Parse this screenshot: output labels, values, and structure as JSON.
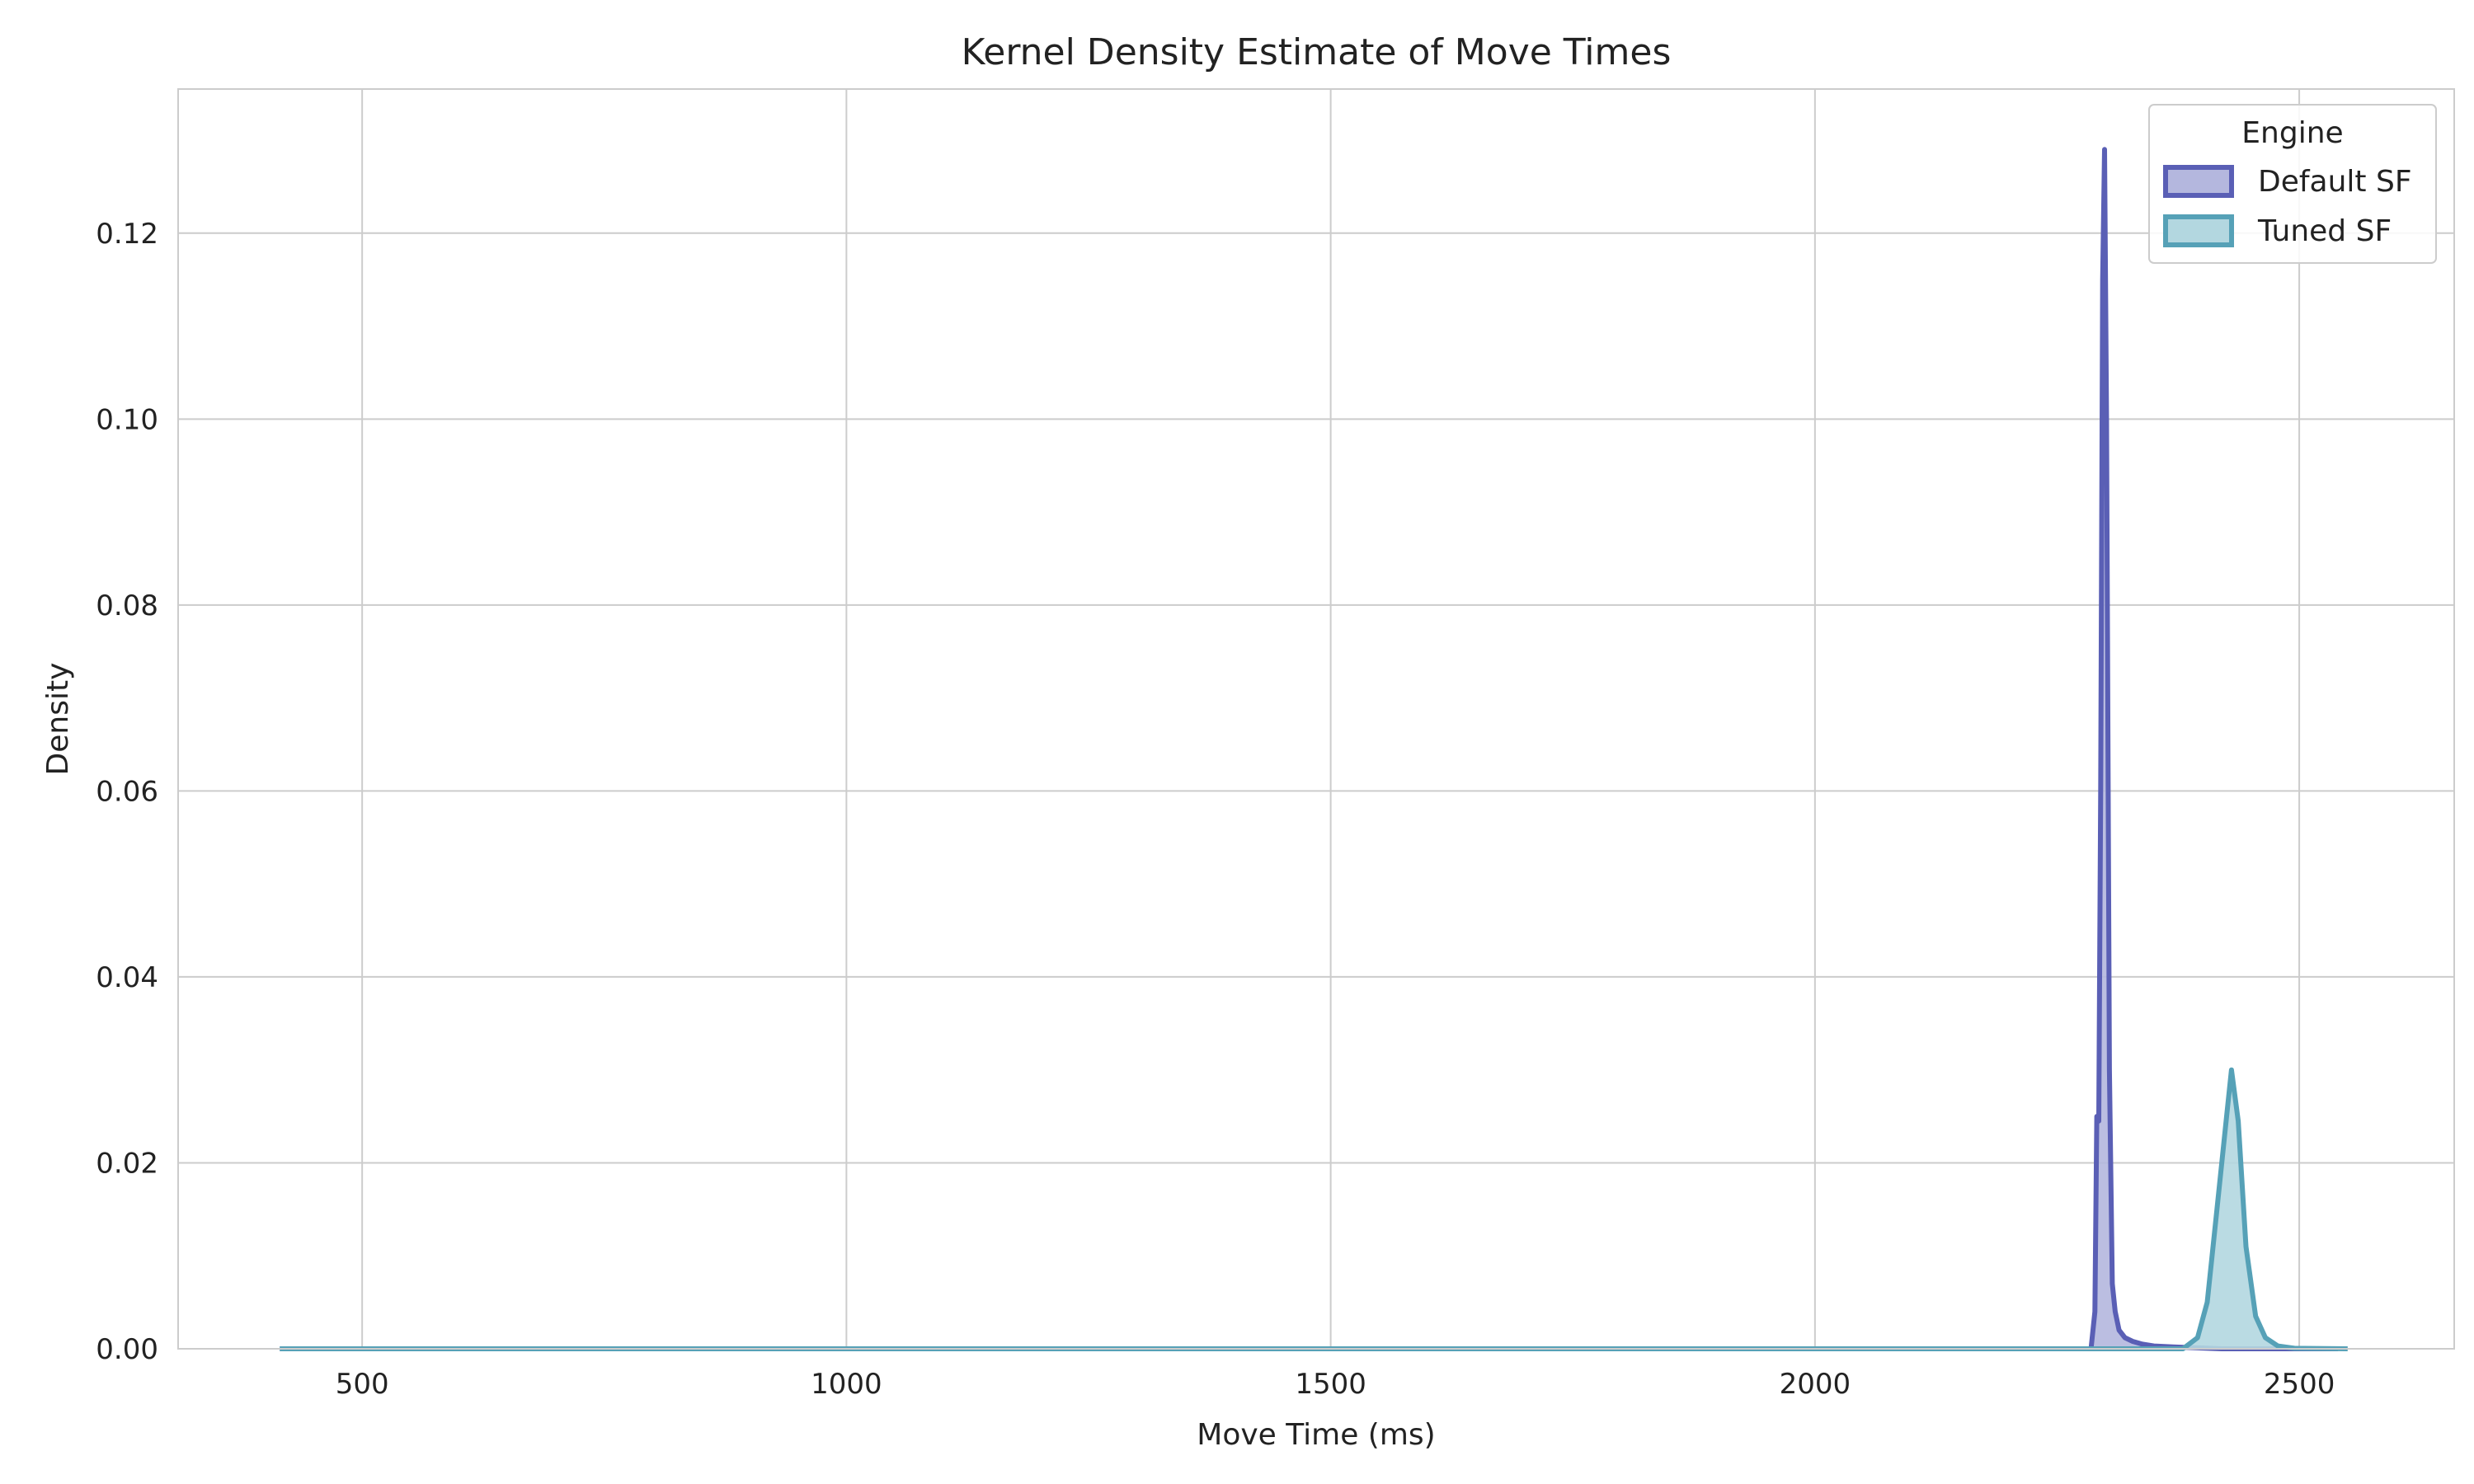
{
  "chart_data": {
    "type": "area",
    "title": "Kernel Density Estimate of Move Times",
    "xlabel": "Move Time (ms)",
    "ylabel": "Density",
    "xlim": [
      310,
      2660
    ],
    "ylim": [
      0,
      0.1355
    ],
    "xticks": [
      500,
      1000,
      1500,
      2000,
      2500
    ],
    "yticks": [
      0.0,
      0.02,
      0.04,
      0.06,
      0.08,
      0.1,
      0.12
    ],
    "ytick_labels": [
      "0.00",
      "0.02",
      "0.04",
      "0.06",
      "0.08",
      "0.10",
      "0.12"
    ],
    "xtick_labels": [
      "500",
      "1000",
      "1500",
      "2000",
      "2500"
    ],
    "grid": true,
    "legend": {
      "title": "Engine",
      "position": "top-right",
      "entries": [
        "Default SF",
        "Tuned SF"
      ]
    },
    "series": [
      {
        "name": "Default SF",
        "color": "#5a5fb5",
        "fill": "#b4b7de",
        "points": [
          [
            415,
            0
          ],
          [
            2285,
            0
          ],
          [
            2289,
            0.004
          ],
          [
            2291,
            0.025
          ],
          [
            2293,
            0.0245
          ],
          [
            2295,
            0.06
          ],
          [
            2297,
            0.115
          ],
          [
            2299,
            0.129
          ],
          [
            2301,
            0.1
          ],
          [
            2304,
            0.03
          ],
          [
            2307,
            0.007
          ],
          [
            2310,
            0.004
          ],
          [
            2314,
            0.002
          ],
          [
            2320,
            0.0012
          ],
          [
            2328,
            0.0008
          ],
          [
            2338,
            0.0005
          ],
          [
            2350,
            0.0003
          ],
          [
            2370,
            0.0002
          ],
          [
            2420,
            0
          ],
          [
            2540,
            0
          ]
        ]
      },
      {
        "name": "Tuned SF",
        "color": "#56a1b7",
        "fill": "#b3d7e0",
        "points": [
          [
            415,
            0
          ],
          [
            2380,
            0
          ],
          [
            2395,
            0.0012
          ],
          [
            2405,
            0.005
          ],
          [
            2415,
            0.015
          ],
          [
            2425,
            0.025
          ],
          [
            2430,
            0.03
          ],
          [
            2437,
            0.0245
          ],
          [
            2445,
            0.011
          ],
          [
            2455,
            0.0035
          ],
          [
            2465,
            0.0012
          ],
          [
            2478,
            0.0003
          ],
          [
            2495,
            5e-05
          ],
          [
            2550,
            0
          ]
        ]
      }
    ]
  }
}
